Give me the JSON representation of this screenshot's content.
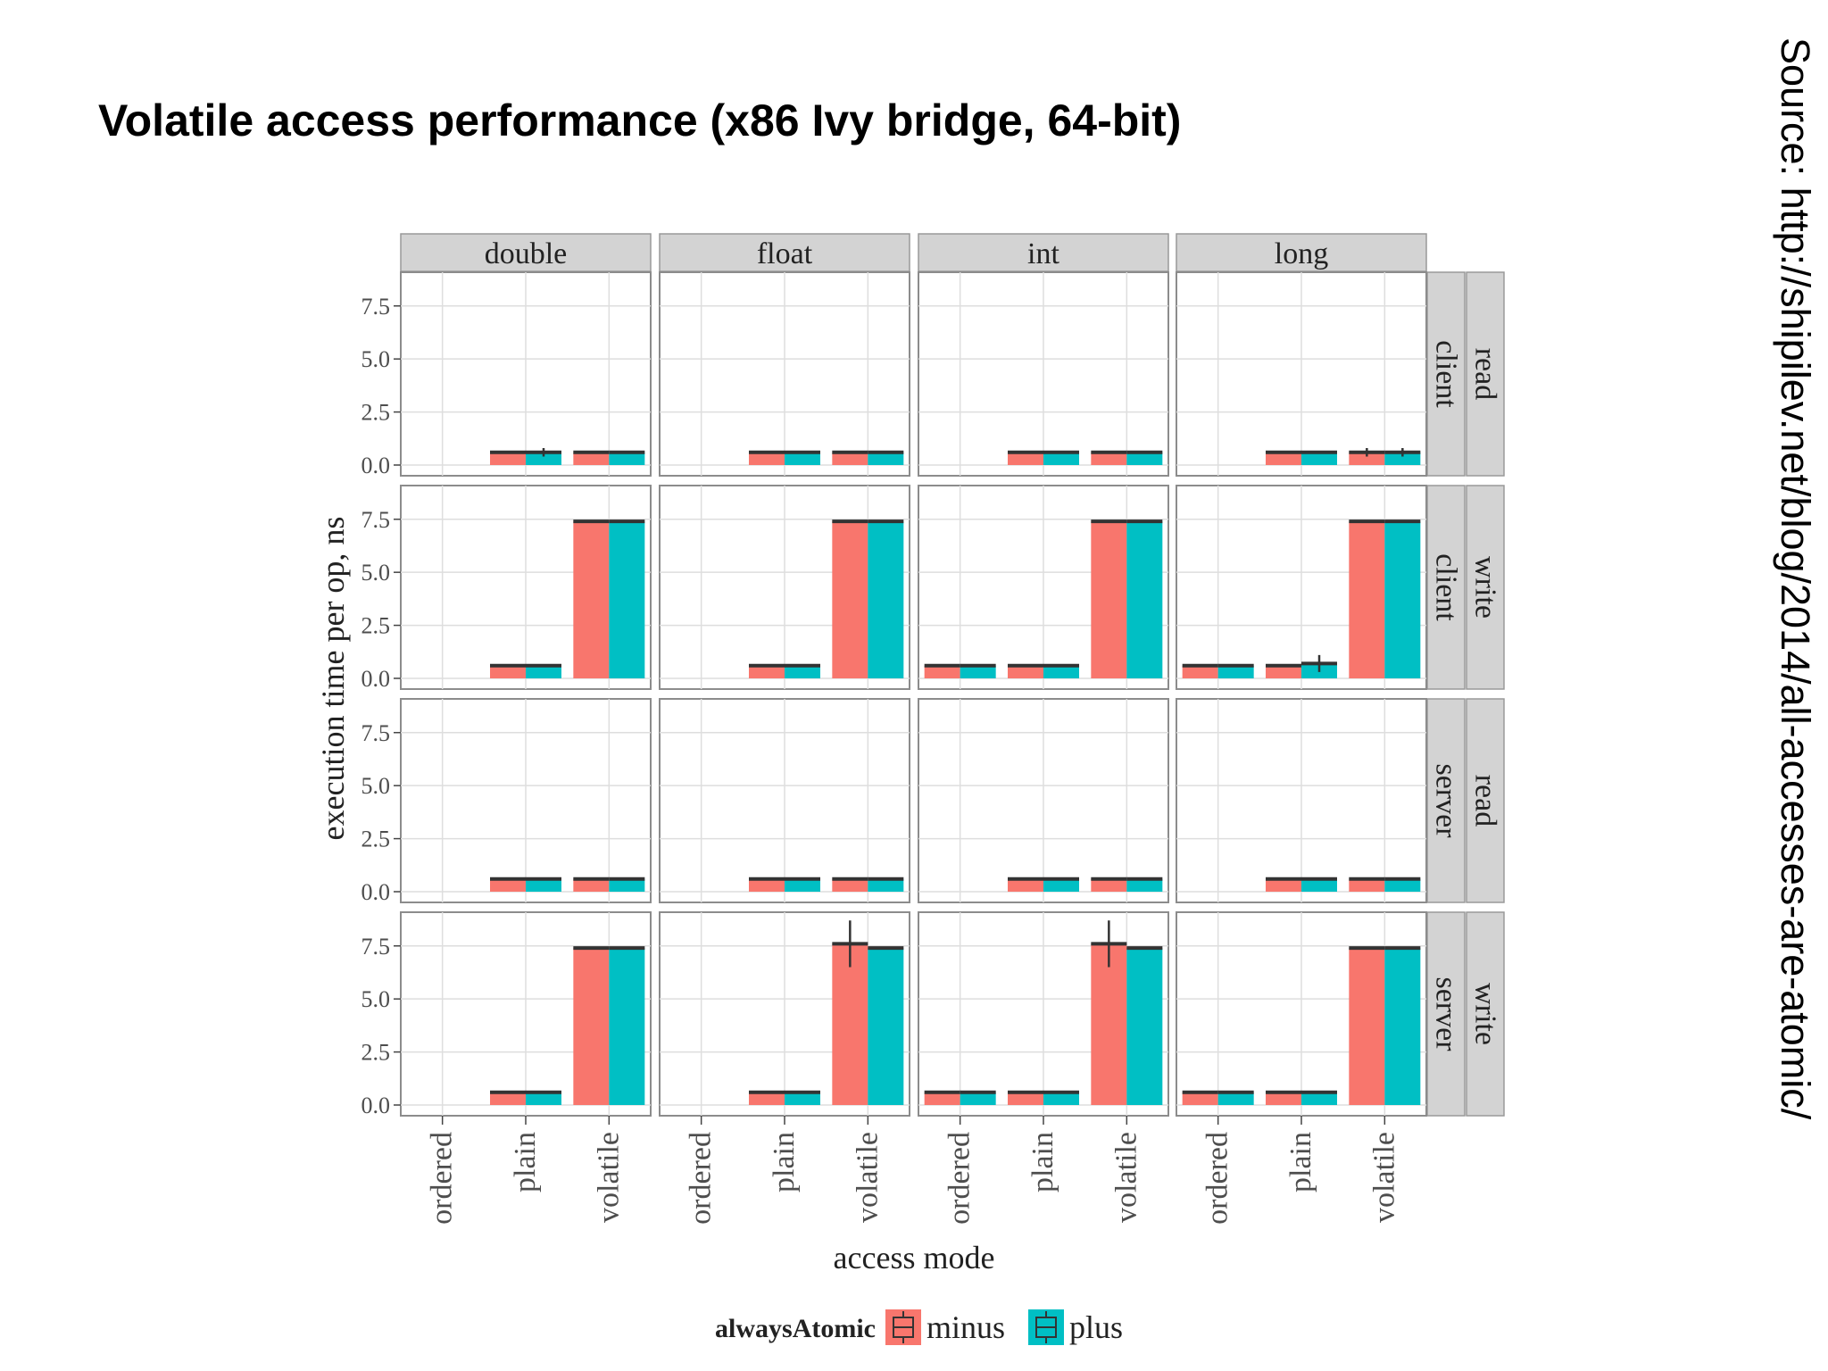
{
  "slide": {
    "title": "Volatile access performance (x86 Ivy bridge, 64-bit)",
    "source": "Source: http://shipilev.net/blog/2014/all-accesses-are-atomic/"
  },
  "colors": {
    "minus": "#F8766D",
    "plus": "#00BFC4",
    "strip": "#d3d3d3",
    "grid": "#dedede"
  },
  "chart_data": {
    "type": "bar",
    "xlabel": "access mode",
    "ylabel": "execution time per op, ns",
    "ylim": [
      0,
      8.5
    ],
    "yticks": [
      0.0,
      2.5,
      5.0,
      7.5
    ],
    "ytick_labels": [
      "0.0",
      "2.5",
      "5.0",
      "7.5"
    ],
    "categories": [
      "ordered",
      "plain",
      "volatile"
    ],
    "column_facets": [
      "double",
      "float",
      "int",
      "long"
    ],
    "row_facets": [
      {
        "cpu": "client",
        "op": "read"
      },
      {
        "cpu": "client",
        "op": "write"
      },
      {
        "cpu": "server",
        "op": "read"
      },
      {
        "cpu": "server",
        "op": "write"
      }
    ],
    "legend": {
      "title": "alwaysAtomic",
      "position": "bottom",
      "entries": [
        "minus",
        "plus"
      ]
    },
    "grid": true,
    "panels": [
      {
        "row": 0,
        "col": 0,
        "minus": [
          null,
          0.6,
          0.6
        ],
        "plus": [
          null,
          0.6,
          0.6
        ]
      },
      {
        "row": 0,
        "col": 1,
        "minus": [
          null,
          0.6,
          0.6
        ],
        "plus": [
          null,
          0.6,
          0.6
        ]
      },
      {
        "row": 0,
        "col": 2,
        "minus": [
          null,
          0.6,
          0.6
        ],
        "plus": [
          null,
          0.6,
          0.6
        ]
      },
      {
        "row": 0,
        "col": 3,
        "minus": [
          null,
          0.6,
          0.6
        ],
        "plus": [
          null,
          0.6,
          0.6
        ]
      },
      {
        "row": 1,
        "col": 0,
        "minus": [
          null,
          0.6,
          7.4
        ],
        "plus": [
          null,
          0.6,
          7.4
        ]
      },
      {
        "row": 1,
        "col": 1,
        "minus": [
          null,
          0.6,
          7.4
        ],
        "plus": [
          null,
          0.6,
          7.4
        ]
      },
      {
        "row": 1,
        "col": 2,
        "minus": [
          0.6,
          0.6,
          7.4
        ],
        "plus": [
          0.6,
          0.6,
          7.4
        ]
      },
      {
        "row": 1,
        "col": 3,
        "minus": [
          0.6,
          0.6,
          7.4
        ],
        "plus": [
          0.6,
          0.7,
          7.4
        ]
      },
      {
        "row": 2,
        "col": 0,
        "minus": [
          null,
          0.6,
          0.6
        ],
        "plus": [
          null,
          0.6,
          0.6
        ]
      },
      {
        "row": 2,
        "col": 1,
        "minus": [
          null,
          0.6,
          0.6
        ],
        "plus": [
          null,
          0.6,
          0.6
        ]
      },
      {
        "row": 2,
        "col": 2,
        "minus": [
          null,
          0.6,
          0.6
        ],
        "plus": [
          null,
          0.6,
          0.6
        ]
      },
      {
        "row": 2,
        "col": 3,
        "minus": [
          null,
          0.6,
          0.6
        ],
        "plus": [
          null,
          0.6,
          0.6
        ]
      },
      {
        "row": 3,
        "col": 0,
        "minus": [
          null,
          0.6,
          7.4
        ],
        "plus": [
          null,
          0.6,
          7.4
        ]
      },
      {
        "row": 3,
        "col": 1,
        "minus": [
          null,
          0.6,
          7.6
        ],
        "plus": [
          null,
          0.6,
          7.4
        ]
      },
      {
        "row": 3,
        "col": 2,
        "minus": [
          0.6,
          0.6,
          7.6
        ],
        "plus": [
          0.6,
          0.6,
          7.4
        ]
      },
      {
        "row": 3,
        "col": 3,
        "minus": [
          0.6,
          0.6,
          7.4
        ],
        "plus": [
          0.6,
          0.6,
          7.4
        ]
      }
    ]
  }
}
